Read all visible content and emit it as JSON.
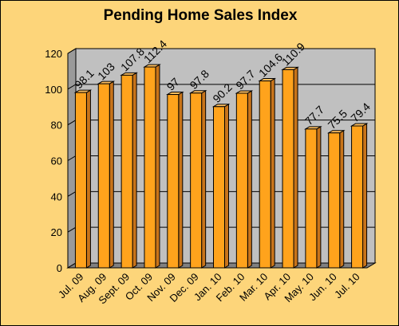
{
  "chart_data": {
    "type": "bar",
    "title": "Pending Home Sales Index",
    "categories": [
      "Jul. 09",
      "Aug. 09",
      "Sept. 09",
      "Oct. 09",
      "Nov. 09",
      "Dec. 09",
      "Jan. 10",
      "Feb. 10",
      "Mar. 10",
      "Apr. 10",
      "May. 10",
      "Jun. 10",
      "Jul. 10"
    ],
    "values": [
      98.1,
      103,
      107.8,
      112.4,
      97,
      97.8,
      90.2,
      97.7,
      104.6,
      110.9,
      77.7,
      75.5,
      79.4
    ],
    "data_labels": [
      "98.1",
      "103",
      "107.8",
      "112.4",
      "97",
      "97.8",
      "90.2",
      "97.7",
      "104.6",
      "110.9",
      "77.7",
      "75.5",
      "79.4"
    ],
    "ylim": [
      0,
      120
    ],
    "yticks": [
      "0",
      "20",
      "40",
      "60",
      "80",
      "100",
      "120"
    ],
    "xlabel": "",
    "ylabel": "",
    "grid": true,
    "legend": "none",
    "colors": {
      "bar_front": "#ffa31c",
      "bar_side": "#c8741a",
      "bar_top": "#ffc060",
      "plot_back": "#c0c0c0",
      "plot_floor": "#808080",
      "chart_background": "#fdd57a"
    }
  }
}
